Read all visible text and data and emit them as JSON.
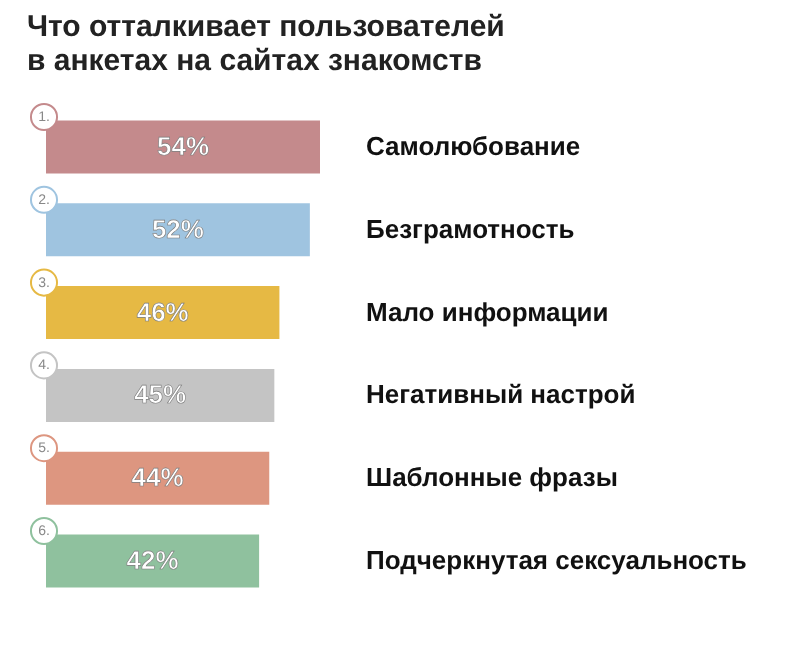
{
  "chart_data": {
    "type": "bar",
    "orientation": "horizontal",
    "title": "Что отталкивает пользователей\nв анкетах на сайтах знакомств",
    "categories": [
      "Самолюбование",
      "Безграмотность",
      "Мало информации",
      "Негативный настрой",
      "Шаблонные фразы",
      "Подчеркнутая сексуальность"
    ],
    "values": [
      54,
      52,
      46,
      45,
      44,
      42
    ],
    "value_labels": [
      "54%",
      "52%",
      "46%",
      "45%",
      "44%",
      "42%"
    ],
    "colors": [
      "#c48a8c",
      "#9fc4e0",
      "#e6b944",
      "#c4c4c4",
      "#dd9680",
      "#8fc19e"
    ],
    "annotations": [
      "1.",
      "2.",
      "3.",
      "4.",
      "5.",
      "6."
    ],
    "legend": false,
    "grid": false
  }
}
